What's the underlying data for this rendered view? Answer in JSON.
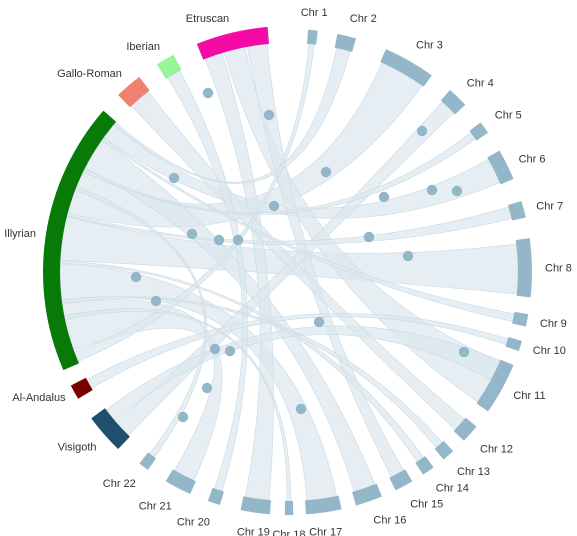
{
  "chart_data": {
    "type": "chord",
    "title": "",
    "colors": {
      "chromosome": "#93b6c9",
      "ribbon": "#dde8ef",
      "ribbon_stroke": "#c9d9e3",
      "dot": "#93b6c9"
    },
    "groups": [
      {
        "name": "Chr 1",
        "kind": "chromosome",
        "start_deg": 4.5,
        "end_deg": 6.8
      },
      {
        "name": "Chr 2",
        "kind": "chromosome",
        "start_deg": 11.5,
        "end_deg": 16.0
      },
      {
        "name": "Chr 3",
        "kind": "chromosome",
        "start_deg": 23.5,
        "end_deg": 36.0
      },
      {
        "name": "Chr 4",
        "kind": "chromosome",
        "start_deg": 41.5,
        "end_deg": 46.5
      },
      {
        "name": "Chr 5",
        "kind": "chromosome",
        "start_deg": 52.0,
        "end_deg": 55.0
      },
      {
        "name": "Chr 6",
        "kind": "chromosome",
        "start_deg": 60.0,
        "end_deg": 67.5
      },
      {
        "name": "Chr 7",
        "kind": "chromosome",
        "start_deg": 73.0,
        "end_deg": 77.0
      },
      {
        "name": "Chr 8",
        "kind": "chromosome",
        "start_deg": 82.0,
        "end_deg": 96.0
      },
      {
        "name": "Chr 9",
        "kind": "chromosome",
        "start_deg": 100.0,
        "end_deg": 103.0
      },
      {
        "name": "Chr 10",
        "kind": "chromosome",
        "start_deg": 106.5,
        "end_deg": 109.0
      },
      {
        "name": "Chr 11",
        "kind": "chromosome",
        "start_deg": 112.5,
        "end_deg": 125.0
      },
      {
        "name": "Chr 12",
        "kind": "chromosome",
        "start_deg": 129.5,
        "end_deg": 134.0
      },
      {
        "name": "Chr 13",
        "kind": "chromosome",
        "start_deg": 137.5,
        "end_deg": 140.5
      },
      {
        "name": "Chr 14",
        "kind": "chromosome",
        "start_deg": 143.5,
        "end_deg": 146.5
      },
      {
        "name": "Chr 15",
        "kind": "chromosome",
        "start_deg": 149.5,
        "end_deg": 154.0
      },
      {
        "name": "Chr 16",
        "kind": "chromosome",
        "start_deg": 157.5,
        "end_deg": 164.0
      },
      {
        "name": "Chr 17",
        "kind": "chromosome",
        "start_deg": 167.5,
        "end_deg": 176.0
      },
      {
        "name": "Chr 18",
        "kind": "chromosome",
        "start_deg": 179.0,
        "end_deg": 181.0
      },
      {
        "name": "Chr 19",
        "kind": "chromosome",
        "start_deg": 184.5,
        "end_deg": 191.5
      },
      {
        "name": "Chr 20",
        "kind": "chromosome",
        "start_deg": 196.5,
        "end_deg": 199.5
      },
      {
        "name": "Chr 21",
        "kind": "chromosome",
        "start_deg": 204.0,
        "end_deg": 210.5
      },
      {
        "name": "Chr 22",
        "kind": "chromosome",
        "start_deg": 215.5,
        "end_deg": 218.0
      },
      {
        "name": "Visigoth",
        "kind": "population",
        "color": "#1f4e6e",
        "start_deg": 224.0,
        "end_deg": 233.5
      },
      {
        "name": "Al-Andalus",
        "kind": "population",
        "color": "#7a0000",
        "start_deg": 239.0,
        "end_deg": 242.5
      },
      {
        "name": "Illyrian",
        "kind": "population",
        "color": "#087a08",
        "start_deg": 246.5,
        "end_deg": 311.0
      },
      {
        "name": "Gallo-Roman",
        "kind": "population",
        "color": "#f28070",
        "start_deg": 316.0,
        "end_deg": 322.5
      },
      {
        "name": "Iberian",
        "kind": "population",
        "color": "#96f596",
        "start_deg": 327.5,
        "end_deg": 332.0
      },
      {
        "name": "Etruscan",
        "kind": "population",
        "color": "#f50aa6",
        "start_deg": 338.0,
        "end_deg": 355.0
      }
    ],
    "links": [
      {
        "source": "Illyrian",
        "s": [
          250.0,
          262.0
        ],
        "target": "Chr 21",
        "t": [
          204.5,
          210.0
        ],
        "dot": [
          183,
          417
        ]
      },
      {
        "source": "Illyrian",
        "s": [
          263.0,
          272.0
        ],
        "target": "Chr 17",
        "t": [
          168.0,
          175.5
        ],
        "dot": [
          301,
          409
        ]
      },
      {
        "source": "Illyrian",
        "s": [
          273.0,
          284.0
        ],
        "target": "Chr 8",
        "t": [
          83.0,
          95.5
        ],
        "dot": [
          136,
          277
        ]
      },
      {
        "source": "Illyrian",
        "s": [
          285.0,
          296.0
        ],
        "target": "Chr 3",
        "t": [
          24.0,
          35.5
        ],
        "dot": [
          156,
          301
        ]
      },
      {
        "source": "Illyrian",
        "s": [
          297.0,
          305.0
        ],
        "target": "Chr 16",
        "t": [
          158.0,
          163.5
        ],
        "dot": [
          174,
          178
        ]
      },
      {
        "source": "Illyrian",
        "s": [
          306.0,
          310.0
        ],
        "target": "Chr 6",
        "t": [
          60.5,
          67.0
        ],
        "dot": [
          192,
          234
        ]
      },
      {
        "source": "Etruscan",
        "s": [
          338.5,
          343.0
        ],
        "target": "Chr 19",
        "t": [
          185.0,
          191.0
        ],
        "dot": [
          269,
          115
        ]
      },
      {
        "source": "Etruscan",
        "s": [
          343.5,
          349.0
        ],
        "target": "Chr 11",
        "t": [
          113.0,
          124.5
        ],
        "dot": [
          274,
          206
        ]
      },
      {
        "source": "Etruscan",
        "s": [
          349.5,
          354.5
        ],
        "target": "Chr 15",
        "t": [
          150.0,
          153.5
        ],
        "dot": [
          408,
          256
        ]
      },
      {
        "source": "Visigoth",
        "s": [
          224.5,
          229.0
        ],
        "target": "Chr 4",
        "t": [
          42.0,
          46.0
        ],
        "dot": [
          215,
          349
        ]
      },
      {
        "source": "Visigoth",
        "s": [
          229.5,
          233.0
        ],
        "target": "Chr 11",
        "t": [
          112.8,
          118.0
        ],
        "dot": [
          230,
          351
        ]
      },
      {
        "source": "Gallo-Roman",
        "s": [
          316.5,
          322.0
        ],
        "target": "Chr 12",
        "t": [
          130.0,
          133.5
        ],
        "dot": [
          208,
          93
        ]
      },
      {
        "source": "Iberian",
        "s": [
          328.0,
          331.5
        ],
        "target": "Chr 20",
        "t": [
          197.0,
          199.0
        ],
        "dot": [
          207,
          388
        ]
      },
      {
        "source": "Al-Andalus",
        "s": [
          239.5,
          242.0
        ],
        "target": "Chr 10",
        "t": [
          107.0,
          108.5
        ],
        "dot": [
          319,
          322
        ]
      },
      {
        "source": "Illyrian",
        "s": [
          247.0,
          249.5
        ],
        "target": "Chr 1",
        "t": [
          5.0,
          6.3
        ],
        "dot": [
          326,
          172
        ]
      },
      {
        "source": "Illyrian",
        "s": [
          310.2,
          310.8
        ],
        "target": "Chr 2",
        "t": [
          12.0,
          15.5
        ],
        "dot": [
          369,
          237
        ]
      },
      {
        "source": "Illyrian",
        "s": [
          296.2,
          296.8
        ],
        "target": "Chr 5",
        "t": [
          52.5,
          54.5
        ],
        "dot": [
          384,
          197
        ]
      },
      {
        "source": "Illyrian",
        "s": [
          284.2,
          284.8
        ],
        "target": "Chr 7",
        "t": [
          73.5,
          76.5
        ],
        "dot": [
          432,
          190
        ]
      },
      {
        "source": "Illyrian",
        "s": [
          305.2,
          305.8
        ],
        "target": "Chr 9",
        "t": [
          100.5,
          102.5
        ],
        "dot": [
          457,
          191
        ]
      },
      {
        "source": "Illyrian",
        "s": [
          262.2,
          262.8
        ],
        "target": "Chr 13",
        "t": [
          138.0,
          140.0
        ],
        "dot": [
          422,
          131
        ]
      },
      {
        "source": "Illyrian",
        "s": [
          272.2,
          272.8
        ],
        "target": "Chr 14",
        "t": [
          144.0,
          146.0
        ],
        "dot": [
          464,
          352
        ]
      },
      {
        "source": "Illyrian",
        "s": [
          258.0,
          259.0
        ],
        "target": "Chr 18",
        "t": [
          179.5,
          180.5
        ],
        "dot": [
          219,
          240
        ]
      },
      {
        "source": "Illyrian",
        "s": [
          291.0,
          292.0
        ],
        "target": "Chr 22",
        "t": [
          216.0,
          217.5
        ],
        "dot": [
          238,
          240
        ]
      }
    ]
  }
}
